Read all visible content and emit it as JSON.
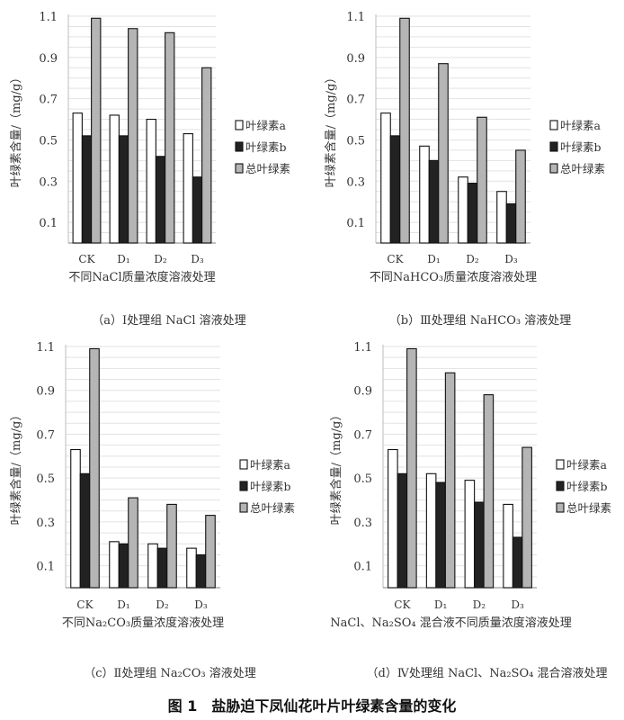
{
  "figure_title": "图 1　盐胁迫下凤仙花叶片叶绿素含量的变化",
  "colors": {
    "chl_a": "#ffffff",
    "chl_b": "#222222",
    "total": "#b5b5b5"
  },
  "chart_data": [
    {
      "type": "bar",
      "caption": "（a）Ⅰ处理组 NaCl 溶液处理",
      "xlabel": "不同NaCl质量浓度溶液处理",
      "ylabel": "叶绿素含量/（mg/g）",
      "categories": [
        "CK",
        "D₁",
        "D₂",
        "D₃"
      ],
      "yticks": [
        "0.1",
        "0.3",
        "0.5",
        "0.7",
        "0.9",
        "1.1"
      ],
      "ylim": [
        0,
        1.1
      ],
      "grid": true,
      "legend_position": "right",
      "series": [
        {
          "name": "叶绿素a",
          "values": [
            0.63,
            0.62,
            0.6,
            0.53
          ]
        },
        {
          "name": "叶绿素b",
          "values": [
            0.52,
            0.52,
            0.42,
            0.32
          ]
        },
        {
          "name": "总叶绿素",
          "values": [
            1.09,
            1.04,
            1.02,
            0.85
          ]
        }
      ]
    },
    {
      "type": "bar",
      "caption": "（b）Ⅲ处理组 NaHCO₃ 溶液处理",
      "xlabel": "不同NaHCO₃质量浓度溶液处理",
      "ylabel": "叶绿素含量/（mg/g）",
      "categories": [
        "CK",
        "D₁",
        "D₂",
        "D₃"
      ],
      "yticks": [
        "0.1",
        "0.3",
        "0.5",
        "0.7",
        "0.9",
        "1.1"
      ],
      "ylim": [
        0,
        1.1
      ],
      "grid": true,
      "legend_position": "right",
      "series": [
        {
          "name": "叶绿素a",
          "values": [
            0.63,
            0.47,
            0.32,
            0.25
          ]
        },
        {
          "name": "叶绿素b",
          "values": [
            0.52,
            0.4,
            0.29,
            0.19
          ]
        },
        {
          "name": "总叶绿素",
          "values": [
            1.09,
            0.87,
            0.61,
            0.45
          ]
        }
      ]
    },
    {
      "type": "bar",
      "caption": "（c）Ⅱ处理组 Na₂CO₃ 溶液处理",
      "xlabel": "不同Na₂CO₃质量浓度溶液处理",
      "ylabel": "叶绿素含量/（mg/g）",
      "categories": [
        "CK",
        "D₁",
        "D₂",
        "D₃"
      ],
      "yticks": [
        "0.1",
        "0.3",
        "0.5",
        "0.7",
        "0.9",
        "1.1"
      ],
      "ylim": [
        0,
        1.1
      ],
      "grid": true,
      "legend_position": "right",
      "series": [
        {
          "name": "叶绿素a",
          "values": [
            0.63,
            0.21,
            0.2,
            0.18
          ]
        },
        {
          "name": "叶绿素b",
          "values": [
            0.52,
            0.2,
            0.18,
            0.15
          ]
        },
        {
          "name": "总叶绿素",
          "values": [
            1.09,
            0.41,
            0.38,
            0.33
          ]
        }
      ]
    },
    {
      "type": "bar",
      "caption": "（d）Ⅳ处理组 NaCl、Na₂SO₄ 混合溶液处理",
      "xlabel": "NaCl、Na₂SO₄ 混合液不同质量浓度溶液处理",
      "ylabel": "叶绿素含量/（mg/g）",
      "categories": [
        "CK",
        "D₁",
        "D₂",
        "D₃"
      ],
      "yticks": [
        "0.1",
        "0.3",
        "0.5",
        "0.7",
        "0.9",
        "1.1"
      ],
      "ylim": [
        0,
        1.1
      ],
      "grid": true,
      "legend_position": "right",
      "series": [
        {
          "name": "叶绿素a",
          "values": [
            0.63,
            0.52,
            0.49,
            0.38
          ]
        },
        {
          "name": "叶绿素b",
          "values": [
            0.52,
            0.48,
            0.39,
            0.23
          ]
        },
        {
          "name": "总叶绿素",
          "values": [
            1.09,
            0.98,
            0.88,
            0.64
          ]
        }
      ]
    }
  ]
}
